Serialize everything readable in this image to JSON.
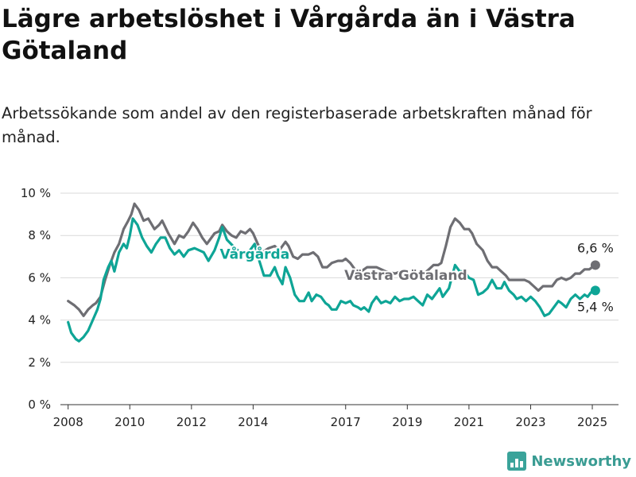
{
  "title": "Lägre arbetslöshet i Vårgårda än i Västra Götaland",
  "subtitle": "Arbetssökande som andel av den registerbaserade arbetskraften månad för månad.",
  "brand": "Newsworthy",
  "colors": {
    "vastra_gotaland": "#6e6e73",
    "vargarda": "#0ea596",
    "grid": "#d9d9d9"
  },
  "chart_data": {
    "type": "line",
    "x_unit": "year",
    "xlim": [
      2007.75,
      2025.85
    ],
    "ylim": [
      0,
      10
    ],
    "y_ticks": [
      0,
      2,
      4,
      6,
      8,
      10
    ],
    "y_tick_labels": [
      "0 %",
      "2 %",
      "4 %",
      "6 %",
      "8 %",
      "10 %"
    ],
    "x_ticks": [
      2008,
      2010,
      2012,
      2014,
      2017,
      2019,
      2021,
      2023,
      2025
    ],
    "x_tick_labels": [
      "2008",
      "2010",
      "2012",
      "2014",
      "2017",
      "2019",
      "2021",
      "2023",
      "2025"
    ],
    "grid": true,
    "series": [
      {
        "name": "Västra Götaland",
        "color": "#6e6e73",
        "end_label": "6,6 %",
        "points": [
          [
            2008.0,
            4.9
          ],
          [
            2008.2,
            4.7
          ],
          [
            2008.35,
            4.5
          ],
          [
            2008.5,
            4.2
          ],
          [
            2008.65,
            4.5
          ],
          [
            2008.8,
            4.7
          ],
          [
            2008.9,
            4.8
          ],
          [
            2009.05,
            5.1
          ],
          [
            2009.2,
            5.9
          ],
          [
            2009.35,
            6.6
          ],
          [
            2009.5,
            7.2
          ],
          [
            2009.65,
            7.6
          ],
          [
            2009.8,
            8.3
          ],
          [
            2009.95,
            8.7
          ],
          [
            2010.05,
            9.0
          ],
          [
            2010.15,
            9.5
          ],
          [
            2010.3,
            9.2
          ],
          [
            2010.45,
            8.7
          ],
          [
            2010.6,
            8.8
          ],
          [
            2010.8,
            8.3
          ],
          [
            2010.95,
            8.5
          ],
          [
            2011.05,
            8.7
          ],
          [
            2011.25,
            8.1
          ],
          [
            2011.45,
            7.6
          ],
          [
            2011.6,
            8.0
          ],
          [
            2011.75,
            7.9
          ],
          [
            2011.9,
            8.2
          ],
          [
            2012.05,
            8.6
          ],
          [
            2012.2,
            8.3
          ],
          [
            2012.35,
            7.9
          ],
          [
            2012.5,
            7.6
          ],
          [
            2012.6,
            7.8
          ],
          [
            2012.75,
            8.1
          ],
          [
            2012.9,
            8.2
          ],
          [
            2013.0,
            8.5
          ],
          [
            2013.15,
            8.2
          ],
          [
            2013.3,
            8.0
          ],
          [
            2013.45,
            7.9
          ],
          [
            2013.6,
            8.2
          ],
          [
            2013.75,
            8.1
          ],
          [
            2013.9,
            8.3
          ],
          [
            2014.0,
            8.1
          ],
          [
            2014.15,
            7.6
          ],
          [
            2014.3,
            7.2
          ],
          [
            2014.5,
            7.4
          ],
          [
            2014.7,
            7.5
          ],
          [
            2014.85,
            7.3
          ],
          [
            2014.95,
            7.5
          ],
          [
            2015.05,
            7.7
          ],
          [
            2015.15,
            7.5
          ],
          [
            2015.3,
            7.0
          ],
          [
            2015.45,
            6.9
          ],
          [
            2015.6,
            7.1
          ],
          [
            2015.8,
            7.1
          ],
          [
            2015.95,
            7.2
          ],
          [
            2016.1,
            7.0
          ],
          [
            2016.25,
            6.5
          ],
          [
            2016.4,
            6.5
          ],
          [
            2016.55,
            6.7
          ],
          [
            2016.75,
            6.8
          ],
          [
            2016.9,
            6.8
          ],
          [
            2017.0,
            6.9
          ],
          [
            2017.15,
            6.7
          ],
          [
            2017.3,
            6.4
          ],
          [
            2017.5,
            6.3
          ],
          [
            2017.7,
            6.5
          ],
          [
            2017.85,
            6.5
          ],
          [
            2018.0,
            6.5
          ],
          [
            2018.3,
            6.3
          ],
          [
            2018.6,
            6.2
          ],
          [
            2018.8,
            6.3
          ],
          [
            2019.0,
            6.2
          ],
          [
            2019.25,
            6.0
          ],
          [
            2019.4,
            6.1
          ],
          [
            2019.55,
            6.2
          ],
          [
            2019.7,
            6.4
          ],
          [
            2019.85,
            6.6
          ],
          [
            2020.0,
            6.6
          ],
          [
            2020.1,
            6.7
          ],
          [
            2020.25,
            7.5
          ],
          [
            2020.4,
            8.4
          ],
          [
            2020.55,
            8.8
          ],
          [
            2020.7,
            8.6
          ],
          [
            2020.85,
            8.3
          ],
          [
            2021.0,
            8.3
          ],
          [
            2021.1,
            8.1
          ],
          [
            2021.25,
            7.6
          ],
          [
            2021.45,
            7.3
          ],
          [
            2021.6,
            6.8
          ],
          [
            2021.75,
            6.5
          ],
          [
            2021.9,
            6.5
          ],
          [
            2022.05,
            6.3
          ],
          [
            2022.2,
            6.1
          ],
          [
            2022.3,
            5.9
          ],
          [
            2022.6,
            5.9
          ],
          [
            2022.8,
            5.9
          ],
          [
            2022.95,
            5.8
          ],
          [
            2023.1,
            5.6
          ],
          [
            2023.25,
            5.4
          ],
          [
            2023.4,
            5.6
          ],
          [
            2023.55,
            5.6
          ],
          [
            2023.7,
            5.6
          ],
          [
            2023.85,
            5.9
          ],
          [
            2024.0,
            6.0
          ],
          [
            2024.15,
            5.9
          ],
          [
            2024.3,
            6.0
          ],
          [
            2024.45,
            6.2
          ],
          [
            2024.6,
            6.2
          ],
          [
            2024.75,
            6.4
          ],
          [
            2024.9,
            6.4
          ],
          [
            2025.0,
            6.5
          ],
          [
            2025.1,
            6.6
          ]
        ]
      },
      {
        "name": "Vårgårda",
        "color": "#0ea596",
        "end_label": "5,4 %",
        "points": [
          [
            2008.0,
            3.9
          ],
          [
            2008.1,
            3.4
          ],
          [
            2008.25,
            3.1
          ],
          [
            2008.35,
            3.0
          ],
          [
            2008.5,
            3.2
          ],
          [
            2008.65,
            3.5
          ],
          [
            2008.8,
            4.0
          ],
          [
            2008.95,
            4.5
          ],
          [
            2009.05,
            5.0
          ],
          [
            2009.15,
            5.9
          ],
          [
            2009.3,
            6.5
          ],
          [
            2009.4,
            6.8
          ],
          [
            2009.5,
            6.3
          ],
          [
            2009.65,
            7.2
          ],
          [
            2009.8,
            7.6
          ],
          [
            2009.9,
            7.4
          ],
          [
            2010.0,
            8.0
          ],
          [
            2010.1,
            8.8
          ],
          [
            2010.25,
            8.5
          ],
          [
            2010.4,
            7.9
          ],
          [
            2010.55,
            7.5
          ],
          [
            2010.7,
            7.2
          ],
          [
            2010.85,
            7.6
          ],
          [
            2011.0,
            7.9
          ],
          [
            2011.15,
            7.9
          ],
          [
            2011.3,
            7.4
          ],
          [
            2011.45,
            7.1
          ],
          [
            2011.6,
            7.3
          ],
          [
            2011.75,
            7.0
          ],
          [
            2011.9,
            7.3
          ],
          [
            2012.1,
            7.4
          ],
          [
            2012.25,
            7.3
          ],
          [
            2012.4,
            7.2
          ],
          [
            2012.55,
            6.8
          ],
          [
            2012.75,
            7.3
          ],
          [
            2012.9,
            7.9
          ],
          [
            2013.0,
            8.4
          ],
          [
            2013.15,
            7.8
          ],
          [
            2013.35,
            7.5
          ],
          [
            2013.5,
            7.3
          ],
          [
            2013.65,
            7.2
          ],
          [
            2013.8,
            7.1
          ],
          [
            2013.9,
            7.3
          ],
          [
            2014.05,
            7.6
          ],
          [
            2014.2,
            6.8
          ],
          [
            2014.35,
            6.1
          ],
          [
            2014.55,
            6.1
          ],
          [
            2014.7,
            6.5
          ],
          [
            2014.8,
            6.1
          ],
          [
            2014.95,
            5.7
          ],
          [
            2015.05,
            6.5
          ],
          [
            2015.2,
            6.0
          ],
          [
            2015.35,
            5.2
          ],
          [
            2015.5,
            4.9
          ],
          [
            2015.65,
            4.9
          ],
          [
            2015.8,
            5.3
          ],
          [
            2015.9,
            4.9
          ],
          [
            2016.05,
            5.2
          ],
          [
            2016.2,
            5.1
          ],
          [
            2016.35,
            4.8
          ],
          [
            2016.45,
            4.7
          ],
          [
            2016.55,
            4.5
          ],
          [
            2016.7,
            4.5
          ],
          [
            2016.85,
            4.9
          ],
          [
            2017.0,
            4.8
          ],
          [
            2017.15,
            4.9
          ],
          [
            2017.25,
            4.7
          ],
          [
            2017.4,
            4.6
          ],
          [
            2017.5,
            4.5
          ],
          [
            2017.6,
            4.6
          ],
          [
            2017.75,
            4.4
          ],
          [
            2017.85,
            4.8
          ],
          [
            2018.0,
            5.1
          ],
          [
            2018.15,
            4.8
          ],
          [
            2018.3,
            4.9
          ],
          [
            2018.45,
            4.8
          ],
          [
            2018.6,
            5.1
          ],
          [
            2018.75,
            4.9
          ],
          [
            2018.9,
            5.0
          ],
          [
            2019.05,
            5.0
          ],
          [
            2019.2,
            5.1
          ],
          [
            2019.35,
            4.9
          ],
          [
            2019.5,
            4.7
          ],
          [
            2019.65,
            5.2
          ],
          [
            2019.8,
            5.0
          ],
          [
            2019.95,
            5.3
          ],
          [
            2020.05,
            5.5
          ],
          [
            2020.15,
            5.1
          ],
          [
            2020.35,
            5.5
          ],
          [
            2020.55,
            6.6
          ],
          [
            2020.7,
            6.3
          ],
          [
            2020.85,
            6.3
          ],
          [
            2021.0,
            6.0
          ],
          [
            2021.15,
            5.9
          ],
          [
            2021.3,
            5.2
          ],
          [
            2021.45,
            5.3
          ],
          [
            2021.6,
            5.5
          ],
          [
            2021.75,
            5.9
          ],
          [
            2021.9,
            5.5
          ],
          [
            2022.05,
            5.5
          ],
          [
            2022.15,
            5.8
          ],
          [
            2022.3,
            5.4
          ],
          [
            2022.45,
            5.2
          ],
          [
            2022.55,
            5.0
          ],
          [
            2022.7,
            5.1
          ],
          [
            2022.85,
            4.9
          ],
          [
            2023.0,
            5.1
          ],
          [
            2023.15,
            4.9
          ],
          [
            2023.3,
            4.6
          ],
          [
            2023.45,
            4.2
          ],
          [
            2023.6,
            4.3
          ],
          [
            2023.75,
            4.6
          ],
          [
            2023.9,
            4.9
          ],
          [
            2024.0,
            4.8
          ],
          [
            2024.15,
            4.6
          ],
          [
            2024.3,
            5.0
          ],
          [
            2024.45,
            5.2
          ],
          [
            2024.6,
            5.0
          ],
          [
            2024.75,
            5.2
          ],
          [
            2024.85,
            5.1
          ],
          [
            2024.95,
            5.3
          ],
          [
            2025.1,
            5.4
          ]
        ]
      }
    ]
  }
}
